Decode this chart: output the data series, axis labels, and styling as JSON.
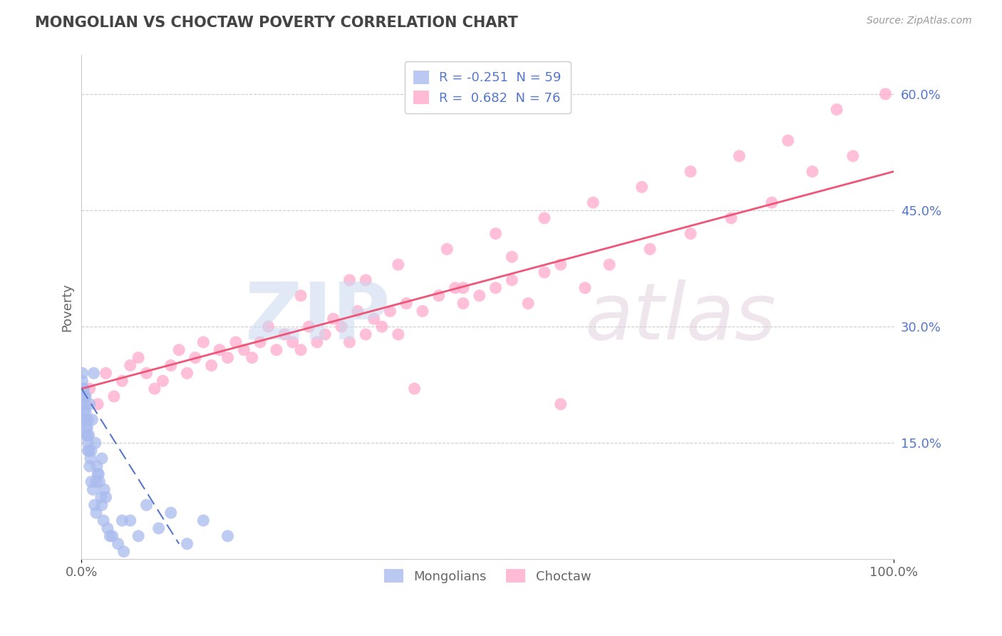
{
  "title": "MONGOLIAN VS CHOCTAW POVERTY CORRELATION CHART",
  "source": "Source: ZipAtlas.com",
  "ylabel": "Poverty",
  "xlim": [
    0,
    100
  ],
  "ylim": [
    0,
    65
  ],
  "mongolian_R": -0.251,
  "mongolian_N": 59,
  "choctaw_R": 0.682,
  "choctaw_N": 76,
  "mongolian_color": "#aabbee",
  "choctaw_color": "#ffaacc",
  "mongolian_line_color": "#5577cc",
  "choctaw_line_color": "#ee5577",
  "ytick_color": "#5577cc",
  "background_color": "#ffffff",
  "legend_labels": [
    "Mongolians",
    "Choctaw"
  ],
  "ytick_vals": [
    15,
    30,
    45,
    60
  ],
  "ytick_labels": [
    "15.0%",
    "30.0%",
    "45.0%",
    "60.0%"
  ],
  "choctaw_x": [
    1,
    2,
    3,
    4,
    5,
    6,
    7,
    8,
    9,
    10,
    11,
    12,
    13,
    14,
    15,
    16,
    17,
    18,
    19,
    20,
    21,
    22,
    23,
    24,
    25,
    26,
    27,
    28,
    29,
    30,
    31,
    32,
    33,
    34,
    35,
    36,
    37,
    38,
    39,
    40,
    42,
    44,
    46,
    47,
    49,
    51,
    53,
    55,
    57,
    59,
    62,
    65,
    70,
    75,
    80,
    85,
    90,
    95,
    27,
    33,
    39,
    45,
    51,
    57,
    63,
    69,
    75,
    81,
    87,
    93,
    99,
    35,
    41,
    47,
    53,
    59
  ],
  "choctaw_y": [
    22,
    20,
    24,
    21,
    23,
    25,
    26,
    24,
    22,
    23,
    25,
    27,
    24,
    26,
    28,
    25,
    27,
    26,
    28,
    27,
    26,
    28,
    30,
    27,
    29,
    28,
    27,
    30,
    28,
    29,
    31,
    30,
    28,
    32,
    29,
    31,
    30,
    32,
    29,
    33,
    32,
    34,
    35,
    33,
    34,
    35,
    36,
    33,
    37,
    38,
    35,
    38,
    40,
    42,
    44,
    46,
    50,
    52,
    34,
    36,
    38,
    40,
    42,
    44,
    46,
    48,
    50,
    52,
    54,
    58,
    60,
    36,
    22,
    35,
    39,
    20
  ],
  "mongolian_x": [
    0.1,
    0.2,
    0.3,
    0.4,
    0.5,
    0.6,
    0.7,
    0.8,
    0.9,
    1.0,
    0.2,
    0.3,
    0.5,
    0.7,
    0.9,
    1.1,
    1.3,
    1.5,
    1.7,
    1.9,
    2.0,
    2.2,
    2.5,
    2.8,
    3.0,
    0.1,
    0.2,
    0.4,
    0.6,
    0.8,
    1.0,
    1.2,
    1.4,
    1.6,
    1.8,
    2.1,
    2.4,
    2.7,
    3.2,
    3.8,
    4.5,
    5.2,
    6.0,
    7.0,
    8.0,
    9.5,
    11.0,
    13.0,
    15.0,
    18.0,
    0.1,
    0.3,
    0.5,
    0.8,
    1.2,
    1.8,
    2.5,
    3.5,
    5.0
  ],
  "mongolian_y": [
    22,
    20,
    18,
    21,
    19,
    17,
    16,
    15,
    14,
    20,
    22,
    19,
    21,
    17,
    16,
    13,
    18,
    24,
    15,
    12,
    11,
    10,
    13,
    9,
    8,
    23,
    21,
    18,
    16,
    14,
    12,
    10,
    9,
    7,
    6,
    11,
    8,
    5,
    4,
    3,
    2,
    1,
    5,
    3,
    7,
    4,
    6,
    2,
    5,
    3,
    24,
    22,
    20,
    18,
    14,
    10,
    7,
    3,
    5
  ],
  "choctaw_trend": [
    0,
    100,
    22,
    50
  ],
  "mongolian_trend": [
    0,
    12,
    22,
    2
  ]
}
